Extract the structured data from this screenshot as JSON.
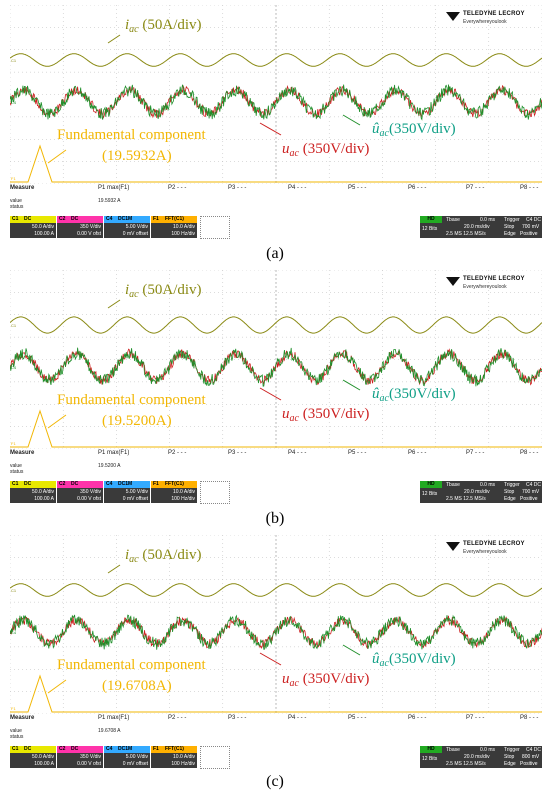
{
  "colors": {
    "ac_current": "#8a8a14",
    "ac_voltage": "#cc1f1f",
    "estimated_voltage": "#1f8f2a",
    "fundamental": "#f2b705",
    "grid": "#b8b8b8"
  },
  "annotations": {
    "i_ac_sym": "i",
    "i_ac_sub": "ac",
    "i_ac_scale": " (50A/div)",
    "u_ac_sym": "u",
    "u_ac_sub": "ac",
    "u_ac_scale": " (350V/div)",
    "uhat_ac_sym": "û",
    "uhat_ac_sub": "ac",
    "uhat_ac_scale": "(350V/div)",
    "fundamental_label": "Fundamental component"
  },
  "scope_ui": {
    "brand": "TELEDYNE LECROY",
    "tagline": "Everywhereyoulook",
    "measure_label": "Measure",
    "params": [
      "P1 max(F1)",
      "P2 - - -",
      "P3 - - -",
      "P4 - - -",
      "P5 - - -",
      "P6 - - -",
      "P7 - - -",
      "P8 - - -"
    ],
    "row_value": "value",
    "row_status": "status",
    "channels": [
      {
        "name": "C1",
        "tag": "DC",
        "line1": "50.0 A/div",
        "line2": "100.00 A",
        "color": "#e8e800"
      },
      {
        "name": "C2",
        "tag": "DC",
        "line1": "350 V/div",
        "line2": "0.00 V ofst",
        "color": "#ff33aa"
      },
      {
        "name": "C4",
        "tag": "DC1M",
        "line1": "5.00 V/div",
        "line2": "0 mV offset",
        "color": "#33aaff"
      },
      {
        "name": "F1",
        "tag": "FFT(C1)",
        "line1": "10.0 A/div",
        "line2": "100 Hz/div",
        "color": "#ffb000"
      }
    ],
    "timebase": {
      "hd": "HD",
      "bits": "12 Bits",
      "tbase_label": "Tbase",
      "tbase_val": "0.0 ms",
      "div": "20.0 ms/div",
      "rate": "2.5 MS  12.5 MS/s",
      "trigger_label": "Trigger",
      "trig_tags": "C4 DC",
      "stop": "Stop",
      "edge": "Edge",
      "positive": "Positive"
    }
  },
  "panels": [
    {
      "caption": "(a)",
      "fundamental_value": "(19.5932A)",
      "measured_value": "19.5932 A",
      "trigger_level": "700 mV"
    },
    {
      "caption": "(b)",
      "fundamental_value": "(19.5200A)",
      "measured_value": "19.5200 A",
      "trigger_level": "700 mV"
    },
    {
      "caption": "(c)",
      "fundamental_value": "(19.6708A)",
      "measured_value": "19.6708 A",
      "trigger_level": "800 mV"
    }
  ],
  "chart_data": [
    {
      "type": "line",
      "title": "",
      "series": [
        {
          "name": "i_ac",
          "waveform": "sine",
          "cycles": 10,
          "amplitude_div": 0.35,
          "scale": "50A/div"
        },
        {
          "name": "u_ac",
          "waveform": "sine",
          "cycles": 10,
          "amplitude_div": 0.65,
          "scale": "350V/div"
        },
        {
          "name": "û_ac",
          "waveform": "sine",
          "cycles": 10,
          "amplitude_div": 0.65,
          "scale": "350V/div"
        },
        {
          "name": "Fundamental component",
          "waveform": "FFT spectrum",
          "peak": 19.5932,
          "unit": "A"
        }
      ]
    },
    {
      "type": "line",
      "title": "",
      "series": [
        {
          "name": "i_ac",
          "waveform": "sine",
          "cycles": 10,
          "amplitude_div": 0.45,
          "scale": "50A/div"
        },
        {
          "name": "u_ac",
          "waveform": "sine",
          "cycles": 10,
          "amplitude_div": 0.75,
          "scale": "350V/div"
        },
        {
          "name": "û_ac",
          "waveform": "sine",
          "cycles": 10,
          "amplitude_div": 0.75,
          "scale": "350V/div"
        },
        {
          "name": "Fundamental component",
          "waveform": "FFT spectrum",
          "peak": 19.52,
          "unit": "A"
        }
      ]
    },
    {
      "type": "line",
      "title": "",
      "series": [
        {
          "name": "i_ac",
          "waveform": "sine",
          "cycles": 10,
          "amplitude_div": 0.35,
          "scale": "50A/div"
        },
        {
          "name": "u_ac",
          "waveform": "sine",
          "cycles": 10,
          "amplitude_div": 0.65,
          "scale": "350V/div"
        },
        {
          "name": "û_ac",
          "waveform": "sine",
          "cycles": 10,
          "amplitude_div": 0.65,
          "scale": "350V/div"
        },
        {
          "name": "Fundamental component",
          "waveform": "FFT spectrum",
          "peak": 19.6708,
          "unit": "A"
        }
      ]
    }
  ]
}
